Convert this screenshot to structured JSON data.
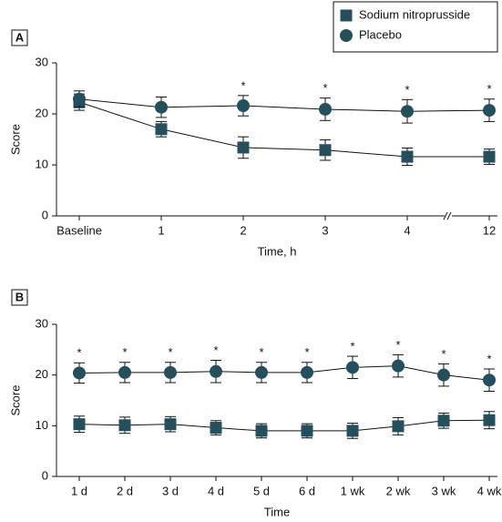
{
  "chart_data": [
    {
      "type": "line",
      "label": "A",
      "xlabel": "Time, h",
      "ylabel": "Score",
      "categories": [
        "Baseline",
        "1",
        "2",
        "3",
        "4",
        "12"
      ],
      "x_axis_break": true,
      "ylim": [
        0,
        30
      ],
      "yticks": [
        0,
        10,
        20,
        30
      ],
      "legend": "top-right",
      "series": [
        {
          "name": "Sodium nitroprusside",
          "color": "#24505e",
          "marker": "square",
          "values": [
            22.3,
            17.0,
            13.4,
            12.9,
            11.6,
            11.6
          ],
          "errors": [
            1.6,
            1.5,
            2.1,
            2.0,
            1.7,
            1.5
          ]
        },
        {
          "name": "Placebo",
          "color": "#24505e",
          "marker": "circle",
          "values": [
            22.9,
            21.3,
            21.6,
            20.9,
            20.5,
            20.7
          ],
          "errors": [
            1.6,
            2.0,
            2.0,
            2.2,
            2.3,
            2.2
          ]
        }
      ],
      "annotations": [
        {
          "x": "2",
          "text": "*"
        },
        {
          "x": "3",
          "text": "*"
        },
        {
          "x": "4",
          "text": "*"
        },
        {
          "x": "12",
          "text": "*"
        }
      ]
    },
    {
      "type": "line",
      "label": "B",
      "xlabel": "Time",
      "ylabel": "Score",
      "categories": [
        "1 d",
        "2 d",
        "3 d",
        "4 d",
        "5 d",
        "6 d",
        "1 wk",
        "2 wk",
        "3 wk",
        "4 wk"
      ],
      "ylim": [
        0,
        30
      ],
      "yticks": [
        0,
        10,
        20,
        30
      ],
      "series": [
        {
          "color": "#24505e",
          "marker": "square",
          "values": [
            10.3,
            10.1,
            10.3,
            9.6,
            9.0,
            9.0,
            9.0,
            9.9,
            11.0,
            11.1
          ],
          "errors": [
            1.6,
            1.6,
            1.5,
            1.4,
            1.4,
            1.4,
            1.5,
            1.7,
            1.5,
            1.7
          ]
        },
        {
          "color": "#24505e",
          "marker": "circle",
          "values": [
            20.4,
            20.5,
            20.5,
            20.7,
            20.5,
            20.5,
            21.5,
            21.8,
            20.0,
            19.0
          ],
          "errors": [
            2.0,
            2.0,
            2.0,
            2.2,
            2.0,
            2.0,
            2.2,
            2.2,
            2.2,
            2.2
          ]
        }
      ],
      "annotations": [
        {
          "x": "1 d",
          "text": "*"
        },
        {
          "x": "2 d",
          "text": "*"
        },
        {
          "x": "3 d",
          "text": "*"
        },
        {
          "x": "4 d",
          "text": "*"
        },
        {
          "x": "5 d",
          "text": "*"
        },
        {
          "x": "6 d",
          "text": "*"
        },
        {
          "x": "1 wk",
          "text": "*"
        },
        {
          "x": "2 wk",
          "text": "*"
        },
        {
          "x": "3 wk",
          "text": "*"
        },
        {
          "x": "4 wk",
          "text": "*"
        }
      ]
    }
  ]
}
